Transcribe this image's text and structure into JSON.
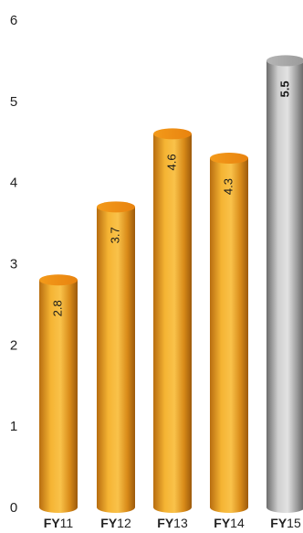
{
  "chart_data": {
    "type": "bar",
    "style": "3d-cylinder",
    "categories": [
      {
        "prefix": "FY",
        "suffix": "11"
      },
      {
        "prefix": "FY",
        "suffix": "12"
      },
      {
        "prefix": "FY",
        "suffix": "13"
      },
      {
        "prefix": "FY",
        "suffix": "14"
      },
      {
        "prefix": "FY",
        "suffix": "15"
      }
    ],
    "values": [
      2.8,
      3.7,
      4.6,
      4.3,
      5.5
    ],
    "data_labels": [
      "2.8",
      "3.7",
      "4.6",
      "4.3",
      "5.5"
    ],
    "highlight_index": 4,
    "title": "",
    "xlabel": "",
    "ylabel": "",
    "ylim": [
      0,
      6
    ],
    "yticks": [
      "0",
      "1",
      "2",
      "3",
      "4",
      "5",
      "6"
    ],
    "grid": false,
    "colors": {
      "bar": "#f0a020",
      "bar_highlight": "#a8a8a8"
    }
  }
}
